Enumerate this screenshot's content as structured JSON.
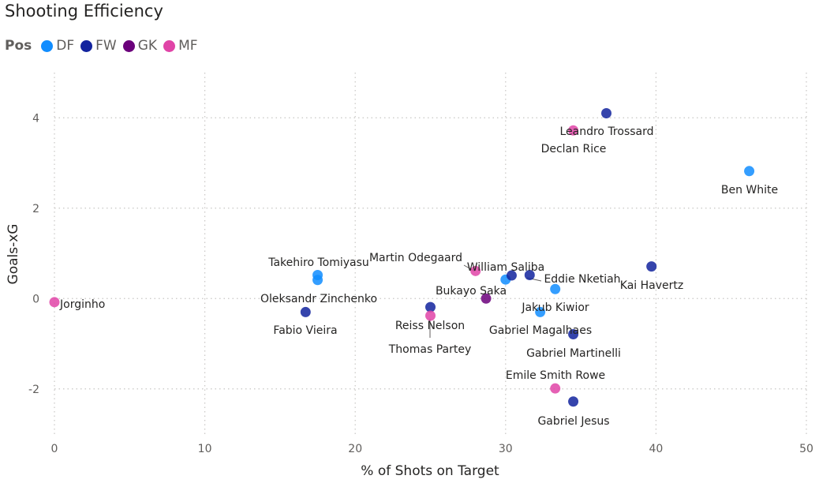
{
  "title": "Shooting Efficiency",
  "legend": {
    "title": "Pos",
    "items": [
      {
        "label": "DF",
        "color": "#118DFF"
      },
      {
        "label": "FW",
        "color": "#12239E"
      },
      {
        "label": "GK",
        "color": "#6B007B"
      },
      {
        "label": "MF",
        "color": "#E044A7"
      }
    ]
  },
  "chart_data": {
    "type": "scatter",
    "title": "Shooting Efficiency",
    "xlabel": "% of Shots on Target",
    "ylabel": "Goals-xG",
    "xlim": [
      0,
      50
    ],
    "ylim": [
      -3,
      5
    ],
    "xticks": [
      0,
      10,
      20,
      30,
      40,
      50
    ],
    "yticks": [
      -2,
      0,
      2,
      4
    ],
    "grid": "dotted",
    "legend_position": "top-left",
    "colors": {
      "DF": "#118DFF",
      "FW": "#12239E",
      "GK": "#6B007B",
      "MF": "#E044A7"
    },
    "points": [
      {
        "name": "Jorginho",
        "pos": "MF",
        "x": 0.0,
        "y": -0.08
      },
      {
        "name": "Takehiro Tomiyasu",
        "pos": "DF",
        "x": 17.5,
        "y": 0.52
      },
      {
        "name": "Oleksandr Zinchenko",
        "pos": "DF",
        "x": 17.5,
        "y": 0.41
      },
      {
        "name": "Fabio Vieira",
        "pos": "FW",
        "x": 16.7,
        "y": -0.3
      },
      {
        "name": "Reiss Nelson",
        "pos": "FW",
        "x": 25.0,
        "y": -0.19
      },
      {
        "name": "Thomas Partey",
        "pos": "MF",
        "x": 25.0,
        "y": -0.38
      },
      {
        "name": "Martin Odegaard",
        "pos": "MF",
        "x": 28.0,
        "y": 0.61
      },
      {
        "name": "William Saliba",
        "pos": "DF",
        "x": 30.0,
        "y": 0.42
      },
      {
        "name": "Bukayo Saka",
        "pos": "GK",
        "x": 28.7,
        "y": 0.0
      },
      {
        "name": "Eddie Nketiah",
        "pos": "FW",
        "x": 30.4,
        "y": 0.51
      },
      {
        "name": "Kai Havertz",
        "pos": "FW",
        "x": 31.6,
        "y": 0.52
      },
      {
        "name": "Jakub Kiwior",
        "pos": "DF",
        "x": 33.3,
        "y": 0.21
      },
      {
        "name": "Gabriel Magalhaes",
        "pos": "DF",
        "x": 32.3,
        "y": -0.3
      },
      {
        "name": "Gabriel Martinelli",
        "pos": "FW",
        "x": 34.5,
        "y": -0.79
      },
      {
        "name": "Kai Havertz",
        "pos": "FW",
        "x": 39.7,
        "y": 0.71
      },
      {
        "name": "Leandro Trossard",
        "pos": "FW",
        "x": 36.7,
        "y": 4.1
      },
      {
        "name": "Declan Rice",
        "pos": "MF",
        "x": 34.5,
        "y": 3.72
      },
      {
        "name": "Ben White",
        "pos": "DF",
        "x": 46.2,
        "y": 2.82
      },
      {
        "name": "Emile Smith Rowe",
        "pos": "MF",
        "x": 33.3,
        "y": -1.99
      },
      {
        "name": "Gabriel Jesus",
        "pos": "FW",
        "x": 34.5,
        "y": -2.28
      }
    ],
    "labels": [
      {
        "text": "Jorginho"
      },
      {
        "text": "Takehiro Tomiyasu"
      },
      {
        "text": "Oleksandr Zinchenko"
      },
      {
        "text": "Fabio Vieira"
      },
      {
        "text": "Reiss Nelson"
      },
      {
        "text": "Thomas Partey"
      },
      {
        "text": "Martin Odegaard"
      },
      {
        "text": "William Saliba"
      },
      {
        "text": "Bukayo Saka"
      },
      {
        "text": "Eddie Nketiah"
      },
      {
        "text": "Kai Havertz"
      },
      {
        "text": "Jakub Kiwior"
      },
      {
        "text": "Gabriel Magalhaes"
      },
      {
        "text": "Gabriel Martinelli"
      },
      {
        "text": "Leandro Trossard"
      },
      {
        "text": "Declan Rice"
      },
      {
        "text": "Ben White"
      },
      {
        "text": "Emile Smith Rowe"
      },
      {
        "text": "Gabriel Jesus"
      }
    ]
  }
}
